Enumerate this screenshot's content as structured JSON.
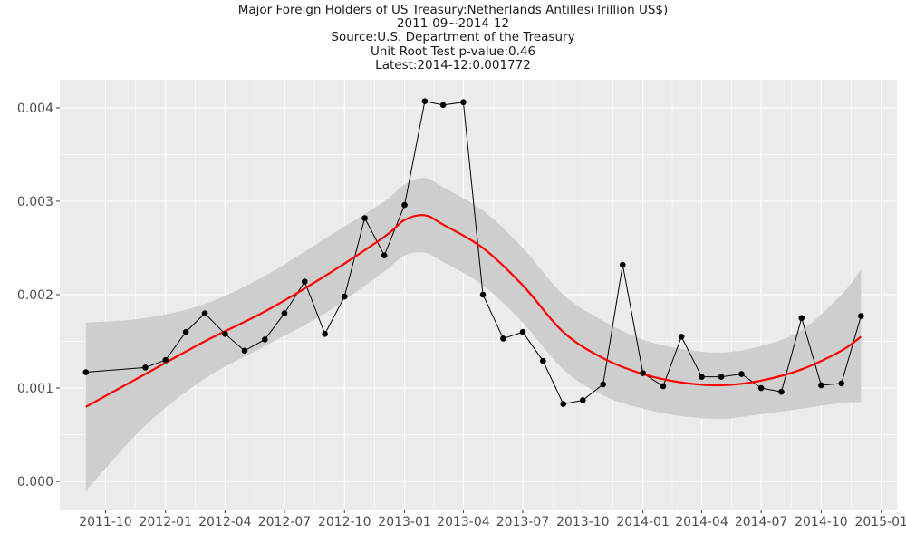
{
  "chart_data": {
    "type": "line",
    "title_lines": [
      "Major Foreign Holders of US Treasury:Netherlands Antilles(Trillion US$)",
      "2011-09~2014-12",
      "Source:U.S. Department of the Treasury",
      "Unit Root Test p-value:0.46",
      "Latest:2014-12:0.001772"
    ],
    "xlabel": "",
    "ylabel": "",
    "x_ticks": [
      "2011-10",
      "2012-01",
      "2012-04",
      "2012-07",
      "2012-10",
      "2013-01",
      "2013-04",
      "2013-07",
      "2013-10",
      "2014-01",
      "2014-04",
      "2014-07",
      "2014-10",
      "2015-01"
    ],
    "y_ticks": [
      "0.000",
      "0.001",
      "0.002",
      "0.003",
      "0.004"
    ],
    "ylim": [
      -0.0003,
      0.0043
    ],
    "xlim": [
      "2011-07-23",
      "2015-01-25"
    ],
    "grid": true,
    "background": "#ebebeb",
    "series": [
      {
        "kind": "observed",
        "color": "#000000",
        "points": [
          {
            "x": "2011-09",
            "y": 0.00117
          },
          {
            "x": "2011-12",
            "y": 0.00122
          },
          {
            "x": "2012-01",
            "y": 0.0013
          },
          {
            "x": "2012-02",
            "y": 0.0016
          },
          {
            "x": "2012-03",
            "y": 0.0018
          },
          {
            "x": "2012-04",
            "y": 0.00158
          },
          {
            "x": "2012-05",
            "y": 0.0014
          },
          {
            "x": "2012-06",
            "y": 0.00152
          },
          {
            "x": "2012-07",
            "y": 0.0018
          },
          {
            "x": "2012-08",
            "y": 0.00214
          },
          {
            "x": "2012-09",
            "y": 0.00158
          },
          {
            "x": "2012-10",
            "y": 0.00198
          },
          {
            "x": "2012-11",
            "y": 0.00282
          },
          {
            "x": "2012-12",
            "y": 0.00242
          },
          {
            "x": "2013-01",
            "y": 0.00296
          },
          {
            "x": "2013-02",
            "y": 0.00407
          },
          {
            "x": "2013-03",
            "y": 0.00403
          },
          {
            "x": "2013-04",
            "y": 0.00406
          },
          {
            "x": "2013-05",
            "y": 0.002
          },
          {
            "x": "2013-06",
            "y": 0.00153
          },
          {
            "x": "2013-07",
            "y": 0.0016
          },
          {
            "x": "2013-08",
            "y": 0.00129
          },
          {
            "x": "2013-09",
            "y": 0.00083
          },
          {
            "x": "2013-10",
            "y": 0.00087
          },
          {
            "x": "2013-11",
            "y": 0.00104
          },
          {
            "x": "2013-12",
            "y": 0.00232
          },
          {
            "x": "2014-01",
            "y": 0.00116
          },
          {
            "x": "2014-02",
            "y": 0.00102
          },
          {
            "x": "2014-03",
            "y": 0.00155
          },
          {
            "x": "2014-04",
            "y": 0.00112
          },
          {
            "x": "2014-05",
            "y": 0.00112
          },
          {
            "x": "2014-06",
            "y": 0.00115
          },
          {
            "x": "2014-07",
            "y": 0.001
          },
          {
            "x": "2014-08",
            "y": 0.00096
          },
          {
            "x": "2014-09",
            "y": 0.00175
          },
          {
            "x": "2014-10",
            "y": 0.00103
          },
          {
            "x": "2014-11",
            "y": 0.00105
          },
          {
            "x": "2014-12",
            "y": 0.001772
          }
        ]
      },
      {
        "kind": "smooth",
        "color": "#ff0000",
        "band_color": "#cccccc",
        "points": [
          {
            "x": "2011-09",
            "y": 0.0008,
            "lo": -0.0001,
            "hi": 0.0017
          },
          {
            "x": "2011-12",
            "y": 0.00115,
            "lo": 0.0006,
            "hi": 0.00175
          },
          {
            "x": "2012-03",
            "y": 0.0015,
            "lo": 0.0011,
            "hi": 0.0019
          },
          {
            "x": "2012-06",
            "y": 0.00182,
            "lo": 0.00145,
            "hi": 0.0022
          },
          {
            "x": "2012-09",
            "y": 0.0022,
            "lo": 0.0018,
            "hi": 0.0026
          },
          {
            "x": "2012-12",
            "y": 0.00262,
            "lo": 0.00225,
            "hi": 0.003
          },
          {
            "x": "2013-01",
            "y": 0.0028,
            "lo": 0.00242,
            "hi": 0.00318
          },
          {
            "x": "2013-02",
            "y": 0.00285,
            "lo": 0.00245,
            "hi": 0.00325
          },
          {
            "x": "2013-03",
            "y": 0.00275,
            "lo": 0.00235,
            "hi": 0.00315
          },
          {
            "x": "2013-05",
            "y": 0.0025,
            "lo": 0.0021,
            "hi": 0.0029
          },
          {
            "x": "2013-07",
            "y": 0.0021,
            "lo": 0.0017,
            "hi": 0.0025
          },
          {
            "x": "2013-09",
            "y": 0.0016,
            "lo": 0.0012,
            "hi": 0.002
          },
          {
            "x": "2013-11",
            "y": 0.00132,
            "lo": 0.00092,
            "hi": 0.00172
          },
          {
            "x": "2014-01",
            "y": 0.00115,
            "lo": 0.00078,
            "hi": 0.00152
          },
          {
            "x": "2014-03",
            "y": 0.00106,
            "lo": 0.0007,
            "hi": 0.00142
          },
          {
            "x": "2014-05",
            "y": 0.00103,
            "lo": 0.00067,
            "hi": 0.00138
          },
          {
            "x": "2014-07",
            "y": 0.00108,
            "lo": 0.00072,
            "hi": 0.00145
          },
          {
            "x": "2014-09",
            "y": 0.0012,
            "lo": 0.00078,
            "hi": 0.00162
          },
          {
            "x": "2014-11",
            "y": 0.0014,
            "lo": 0.00084,
            "hi": 0.002
          },
          {
            "x": "2014-12",
            "y": 0.00155,
            "lo": 0.00085,
            "hi": 0.00227
          }
        ]
      }
    ]
  }
}
